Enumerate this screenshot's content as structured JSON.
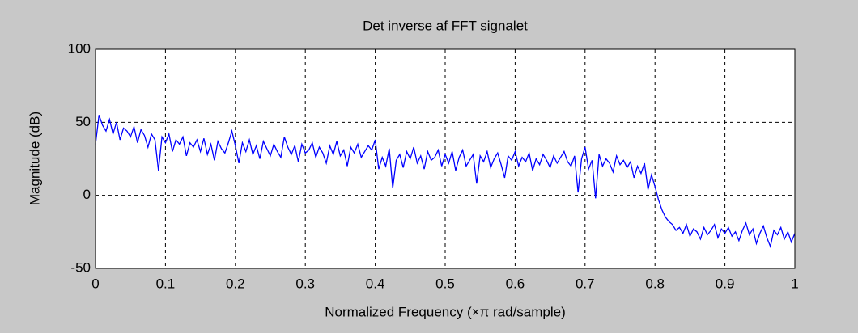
{
  "chart_data": {
    "type": "line",
    "title": "Det inverse af FFT signalet",
    "xlabel": "Normalized Frequency  (×π rad/sample)",
    "ylabel": "Magnitude (dB)",
    "xlim": [
      0,
      1
    ],
    "ylim": [
      -50,
      100
    ],
    "xticks": [
      0,
      0.1,
      0.2,
      0.3,
      0.4,
      0.5,
      0.6,
      0.7,
      0.8,
      0.9,
      1
    ],
    "yticks": [
      -50,
      0,
      50,
      100
    ],
    "grid": true,
    "x": [
      0,
      0.005,
      0.01,
      0.015,
      0.02,
      0.025,
      0.03,
      0.035,
      0.04,
      0.045,
      0.05,
      0.055,
      0.06,
      0.065,
      0.07,
      0.075,
      0.08,
      0.085,
      0.09,
      0.095,
      0.1,
      0.105,
      0.11,
      0.115,
      0.12,
      0.125,
      0.13,
      0.135,
      0.14,
      0.145,
      0.15,
      0.155,
      0.16,
      0.165,
      0.17,
      0.175,
      0.18,
      0.185,
      0.19,
      0.195,
      0.2,
      0.205,
      0.21,
      0.215,
      0.22,
      0.225,
      0.23,
      0.235,
      0.24,
      0.245,
      0.25,
      0.255,
      0.26,
      0.265,
      0.27,
      0.275,
      0.28,
      0.285,
      0.29,
      0.295,
      0.3,
      0.305,
      0.31,
      0.315,
      0.32,
      0.325,
      0.33,
      0.335,
      0.34,
      0.345,
      0.35,
      0.355,
      0.36,
      0.365,
      0.37,
      0.375,
      0.38,
      0.385,
      0.39,
      0.395,
      0.4,
      0.405,
      0.41,
      0.415,
      0.42,
      0.425,
      0.43,
      0.435,
      0.44,
      0.445,
      0.45,
      0.455,
      0.46,
      0.465,
      0.47,
      0.475,
      0.48,
      0.485,
      0.49,
      0.495,
      0.5,
      0.505,
      0.51,
      0.515,
      0.52,
      0.525,
      0.53,
      0.535,
      0.54,
      0.545,
      0.55,
      0.555,
      0.56,
      0.565,
      0.57,
      0.575,
      0.58,
      0.585,
      0.59,
      0.595,
      0.6,
      0.605,
      0.61,
      0.615,
      0.62,
      0.625,
      0.63,
      0.635,
      0.64,
      0.645,
      0.65,
      0.655,
      0.66,
      0.665,
      0.67,
      0.675,
      0.68,
      0.685,
      0.69,
      0.695,
      0.7,
      0.705,
      0.71,
      0.715,
      0.72,
      0.725,
      0.73,
      0.735,
      0.74,
      0.745,
      0.75,
      0.755,
      0.76,
      0.765,
      0.77,
      0.775,
      0.78,
      0.785,
      0.79,
      0.795,
      0.8,
      0.805,
      0.81,
      0.815,
      0.82,
      0.825,
      0.83,
      0.835,
      0.84,
      0.845,
      0.85,
      0.855,
      0.86,
      0.865,
      0.87,
      0.875,
      0.88,
      0.885,
      0.89,
      0.895,
      0.9,
      0.905,
      0.91,
      0.915,
      0.92,
      0.925,
      0.93,
      0.935,
      0.94,
      0.945,
      0.95,
      0.955,
      0.96,
      0.965,
      0.97,
      0.975,
      0.98,
      0.985,
      0.99,
      0.995,
      1
    ],
    "series": [
      {
        "color": "#0000ff",
        "values": [
          35,
          55,
          48,
          44,
          52,
          42,
          50,
          38,
          46,
          44,
          40,
          47,
          36,
          45,
          41,
          33,
          42,
          38,
          17,
          40,
          36,
          42,
          30,
          38,
          35,
          40,
          27,
          36,
          33,
          38,
          30,
          39,
          28,
          35,
          24,
          37,
          32,
          29,
          36,
          44,
          34,
          22,
          36,
          30,
          38,
          28,
          34,
          25,
          37,
          32,
          27,
          35,
          30,
          26,
          40,
          33,
          28,
          34,
          23,
          35,
          29,
          31,
          36,
          26,
          33,
          29,
          22,
          34,
          28,
          37,
          27,
          31,
          20,
          33,
          29,
          35,
          26,
          30,
          34,
          31,
          38,
          18,
          26,
          20,
          32,
          5,
          24,
          28,
          19,
          30,
          25,
          33,
          22,
          27,
          18,
          30,
          24,
          26,
          31,
          20,
          28,
          22,
          30,
          17,
          26,
          31,
          20,
          24,
          28,
          8,
          27,
          23,
          30,
          19,
          25,
          29,
          21,
          12,
          27,
          24,
          30,
          20,
          26,
          23,
          29,
          17,
          25,
          21,
          28,
          24,
          19,
          27,
          22,
          26,
          30,
          23,
          20,
          27,
          2,
          25,
          33,
          18,
          24,
          -2,
          28,
          20,
          25,
          22,
          16,
          27,
          21,
          24,
          19,
          23,
          12,
          20,
          15,
          22,
          4,
          14,
          6,
          -3,
          -10,
          -15,
          -18,
          -20,
          -24,
          -22,
          -26,
          -20,
          -28,
          -23,
          -25,
          -30,
          -22,
          -27,
          -24,
          -20,
          -29,
          -23,
          -26,
          -22,
          -28,
          -25,
          -31,
          -24,
          -19,
          -27,
          -23,
          -33,
          -26,
          -21,
          -29,
          -35,
          -24,
          -27,
          -22,
          -30,
          -25,
          -32,
          -26
        ]
      }
    ]
  }
}
